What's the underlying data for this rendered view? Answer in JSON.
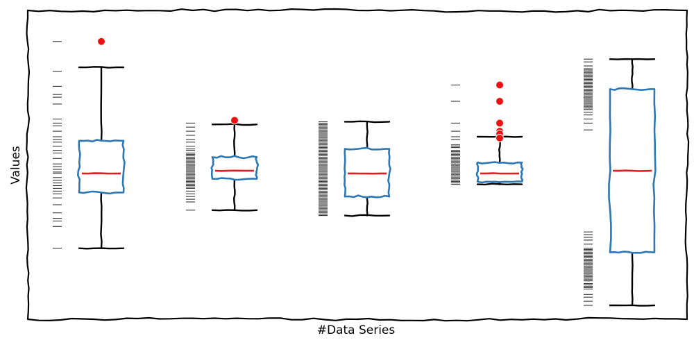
{
  "chart_data": {
    "type": "boxplot",
    "style": "xkcd",
    "xlabel": "#Data Series",
    "ylabel": "Values",
    "ylim": [
      0,
      100
    ],
    "grid": false,
    "colors": {
      "box": "#2c77b4",
      "median": "#e41a1c",
      "whisker": "#000000",
      "flier": "#ee1111",
      "rug": "#333333",
      "frame": "#000000"
    },
    "series": [
      {
        "whisker_low": 21,
        "q1": 41.5,
        "median": 48.5,
        "q3": 60.5,
        "whisker_high": 87.5,
        "outliers": [
          97
        ],
        "rug": [
          97,
          86,
          80.5,
          77.5,
          76.5,
          74,
          68.5,
          67,
          66,
          64,
          62,
          61,
          60,
          58.5,
          57,
          56,
          54,
          52,
          51,
          50,
          49,
          48.5,
          47,
          46,
          45,
          44,
          43,
          42,
          41,
          39.5,
          37,
          34,
          32,
          31,
          29,
          21
        ]
      },
      {
        "whisker_low": 35,
        "q1": 46.5,
        "median": 49.5,
        "q3": 54.5,
        "whisker_high": 66.5,
        "outliers": [
          68
        ],
        "rug": [
          67,
          65.5,
          64,
          62.5,
          61,
          60,
          58.5,
          57.5,
          57,
          56,
          55.5,
          55,
          54.5,
          54,
          53.5,
          53,
          52.5,
          52,
          51.5,
          51,
          50.5,
          50,
          49.5,
          49,
          48.5,
          48,
          47.5,
          47,
          46.5,
          46,
          45.5,
          45,
          44.5,
          44,
          43.5,
          43,
          42,
          41,
          40,
          39,
          38,
          35
        ]
      },
      {
        "whisker_low": 33,
        "q1": 40,
        "median": 48.5,
        "q3": 57.5,
        "whisker_high": 67.5,
        "outliers": [],
        "rug": [
          67.5,
          67,
          66.5,
          66,
          65.5,
          65,
          64.5,
          64,
          63.5,
          63,
          62.5,
          62,
          61.5,
          61,
          60.5,
          60,
          59.5,
          59,
          58.5,
          58,
          57.5,
          57,
          56.5,
          56,
          55.5,
          55,
          54.5,
          54,
          53.5,
          53,
          52.5,
          52,
          51.5,
          51,
          50.5,
          50,
          49.5,
          49,
          48.5,
          48,
          47.5,
          47,
          46.5,
          46,
          45.5,
          45,
          44.5,
          44,
          43.5,
          43,
          42.5,
          42,
          41.5,
          41,
          40.5,
          40,
          39.5,
          39,
          38.5,
          38,
          37.5,
          37,
          36.5,
          36,
          35.5,
          35,
          34.5,
          34,
          33.5,
          33
        ]
      },
      {
        "whisker_low": 44.5,
        "q1": 45.5,
        "median": 48.5,
        "q3": 52.5,
        "whisker_high": 62,
        "outliers": [
          81,
          75,
          67,
          64,
          63,
          61.5
        ],
        "rug": [
          81,
          75,
          67,
          64,
          62,
          61,
          59,
          58.5,
          58,
          57,
          56.5,
          56,
          55.5,
          55,
          54.5,
          54,
          53.5,
          53,
          52.5,
          52,
          51.5,
          51,
          50.5,
          50,
          49.5,
          49,
          48.5,
          48,
          47.5,
          47,
          46.5,
          46,
          45.5,
          45,
          44.5
        ]
      },
      {
        "whisker_low": 0,
        "q1": 19.5,
        "median": 49.5,
        "q3": 79.5,
        "whisker_high": 90.5,
        "outliers": [],
        "rug": [
          90.5,
          89.5,
          88,
          87,
          86.5,
          86,
          85.5,
          85,
          84.5,
          84,
          83.5,
          83,
          82.5,
          82,
          81.5,
          81,
          80.5,
          80,
          79.5,
          79,
          78.5,
          78,
          77.5,
          77,
          76.5,
          76,
          75.5,
          75,
          74.5,
          74,
          73.5,
          73,
          72.5,
          72,
          71,
          70,
          68.5,
          67,
          64.5,
          27,
          26,
          25,
          24,
          22.5,
          21,
          20.5,
          20,
          19.5,
          19,
          18.5,
          18,
          17.5,
          17,
          16.5,
          16,
          15.5,
          15,
          14.5,
          14,
          13.5,
          13,
          12.5,
          12,
          11.5,
          11,
          10.5,
          10,
          9.5,
          9,
          8,
          7.5,
          7,
          6.5,
          6,
          4,
          3,
          1.5,
          0
        ]
      }
    ]
  }
}
